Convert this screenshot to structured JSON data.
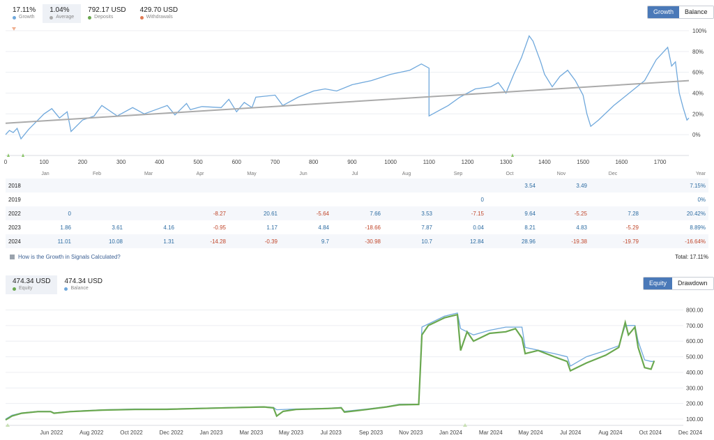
{
  "top_stats": [
    {
      "value": "17.11%",
      "label": "Growth",
      "color": "#6fa8dc",
      "active": false
    },
    {
      "value": "1.04%",
      "label": "Average",
      "color": "#aaaaaa",
      "active": true
    },
    {
      "value": "792.17 USD",
      "label": "Deposits",
      "color": "#6aa84f",
      "active": false
    },
    {
      "value": "429.70 USD",
      "label": "Withdrawals",
      "color": "#e07b53",
      "active": false
    }
  ],
  "growth_toggle": {
    "growth": "Growth",
    "balance": "Balance"
  },
  "growth_chart": {
    "type": "line",
    "x_ticks": [
      "0",
      "100",
      "200",
      "300",
      "400",
      "500",
      "600",
      "700",
      "800",
      "900",
      "1000",
      "1100",
      "1200",
      "1300",
      "1400",
      "1500",
      "1600",
      "1700"
    ],
    "y_ticks": [
      "100%",
      "80%",
      "60%",
      "40%",
      "20%",
      "0%"
    ],
    "series": [
      {
        "role": "growth",
        "color": "#6fa8dc",
        "points": [
          [
            0,
            0
          ],
          [
            10,
            4
          ],
          [
            20,
            2
          ],
          [
            30,
            6
          ],
          [
            40,
            -4
          ],
          [
            60,
            5
          ],
          [
            100,
            20
          ],
          [
            120,
            25
          ],
          [
            140,
            16
          ],
          [
            160,
            22
          ],
          [
            170,
            3
          ],
          [
            200,
            14
          ],
          [
            230,
            18
          ],
          [
            250,
            28
          ],
          [
            290,
            18
          ],
          [
            330,
            26
          ],
          [
            360,
            20
          ],
          [
            390,
            24
          ],
          [
            420,
            28
          ],
          [
            440,
            19
          ],
          [
            470,
            30
          ],
          [
            480,
            24
          ],
          [
            510,
            27
          ],
          [
            560,
            26
          ],
          [
            580,
            34
          ],
          [
            600,
            22
          ],
          [
            620,
            31
          ],
          [
            640,
            26
          ],
          [
            650,
            36
          ],
          [
            700,
            38
          ],
          [
            720,
            28
          ],
          [
            760,
            36
          ],
          [
            800,
            42
          ],
          [
            830,
            44
          ],
          [
            860,
            42
          ],
          [
            900,
            48
          ],
          [
            950,
            52
          ],
          [
            1000,
            58
          ],
          [
            1050,
            62
          ],
          [
            1080,
            68
          ],
          [
            1100,
            64
          ],
          [
            1100,
            18
          ],
          [
            1150,
            28
          ],
          [
            1180,
            36
          ],
          [
            1200,
            40
          ],
          [
            1220,
            44
          ],
          [
            1260,
            46
          ],
          [
            1280,
            50
          ],
          [
            1300,
            40
          ],
          [
            1320,
            58
          ],
          [
            1340,
            74
          ],
          [
            1360,
            95
          ],
          [
            1370,
            90
          ],
          [
            1390,
            70
          ],
          [
            1400,
            58
          ],
          [
            1420,
            46
          ],
          [
            1440,
            56
          ],
          [
            1460,
            62
          ],
          [
            1480,
            52
          ],
          [
            1500,
            38
          ],
          [
            1510,
            20
          ],
          [
            1520,
            8
          ],
          [
            1540,
            14
          ],
          [
            1580,
            28
          ],
          [
            1620,
            40
          ],
          [
            1660,
            52
          ],
          [
            1690,
            72
          ],
          [
            1720,
            84
          ],
          [
            1730,
            66
          ],
          [
            1740,
            70
          ],
          [
            1750,
            40
          ],
          [
            1760,
            26
          ],
          [
            1770,
            14
          ],
          [
            1775,
            16
          ]
        ]
      },
      {
        "role": "average",
        "color": "#aaaaaa",
        "points": [
          [
            0,
            11
          ],
          [
            1775,
            52
          ]
        ]
      }
    ]
  },
  "monthly_table": {
    "months": [
      "Jan",
      "Feb",
      "Mar",
      "Apr",
      "May",
      "Jun",
      "Jul",
      "Aug",
      "Sep",
      "Oct",
      "Nov",
      "Dec"
    ],
    "year_label": "Year",
    "rows": [
      {
        "year": "2018",
        "values": [
          "",
          "",
          "",
          "",
          "",
          "",
          "",
          "",
          "",
          "3.54",
          "3.49",
          ""
        ],
        "total": "7.15%"
      },
      {
        "year": "2019",
        "values": [
          "",
          "",
          "",
          "",
          "",
          "",
          "",
          "",
          "0",
          "",
          "",
          ""
        ],
        "total": "0%"
      },
      {
        "year": "2022",
        "values": [
          "0",
          "",
          "",
          "-8.27",
          "20.61",
          "-5.64",
          "7.66",
          "3.53",
          "-7.15",
          "9.64",
          "-5.25",
          "7.28"
        ],
        "total": "20.42%"
      },
      {
        "year": "2023",
        "values": [
          "1.86",
          "3.61",
          "4.16",
          "-0.95",
          "1.17",
          "4.84",
          "-18.66",
          "7.87",
          "0.04",
          "8.21",
          "4.83",
          "-5.29"
        ],
        "total": "8.89%"
      },
      {
        "year": "2024",
        "values": [
          "11.01",
          "10.08",
          "1.31",
          "-14.28",
          "-0.39",
          "9.7",
          "-30.98",
          "10.7",
          "12.84",
          "28.96",
          "-19.38",
          "-19.79"
        ],
        "total": "-16.64%"
      }
    ]
  },
  "calc_link": "How is the Growth in Signals Calculated?",
  "total_label": "Total: 17.11%",
  "equity_stats": [
    {
      "value": "474.34 USD",
      "label": "Equity",
      "color": "#6aa84f",
      "active": true
    },
    {
      "value": "474.34 USD",
      "label": "Balance",
      "color": "#6fa8dc",
      "active": false
    }
  ],
  "equity_toggle": {
    "equity": "Equity",
    "drawdown": "Drawdown"
  },
  "equity_chart": {
    "type": "line",
    "y_ticks": [
      "800.00",
      "700.00",
      "600.00",
      "500.00",
      "400.00",
      "300.00",
      "200.00",
      "100.00"
    ],
    "x_ticks": [
      "Jun 2022",
      "Aug 2022",
      "Oct 2022",
      "Dec 2022",
      "Jan 2023",
      "Mar 2023",
      "May 2023",
      "Jul 2023",
      "Sep 2023",
      "Nov 2023",
      "Jan 2024",
      "Mar 2024",
      "May 2024",
      "Jul 2024",
      "Aug 2024",
      "Oct 2024",
      "Dec 2024"
    ],
    "series": [
      {
        "role": "balance",
        "color": "#6fa8dc",
        "points": [
          [
            0,
            100
          ],
          [
            2,
            125
          ],
          [
            5,
            140
          ],
          [
            10,
            150
          ],
          [
            14,
            150
          ],
          [
            15,
            140
          ],
          [
            20,
            150
          ],
          [
            30,
            160
          ],
          [
            40,
            165
          ],
          [
            50,
            165
          ],
          [
            60,
            170
          ],
          [
            70,
            175
          ],
          [
            80,
            180
          ],
          [
            83,
            175
          ],
          [
            84,
            160
          ],
          [
            90,
            165
          ],
          [
            100,
            170
          ],
          [
            104,
            175
          ],
          [
            105,
            150
          ],
          [
            112,
            165
          ],
          [
            118,
            180
          ],
          [
            122,
            195
          ],
          [
            128,
            195
          ],
          [
            129,
            690
          ],
          [
            133,
            730
          ],
          [
            136,
            760
          ],
          [
            140,
            780
          ],
          [
            141,
            680
          ],
          [
            145,
            640
          ],
          [
            150,
            670
          ],
          [
            155,
            690
          ],
          [
            160,
            690
          ],
          [
            161,
            560
          ],
          [
            170,
            520
          ],
          [
            174,
            500
          ],
          [
            175,
            440
          ],
          [
            180,
            500
          ],
          [
            186,
            540
          ],
          [
            190,
            570
          ],
          [
            192,
            700
          ],
          [
            195,
            700
          ],
          [
            196,
            600
          ],
          [
            198,
            480
          ],
          [
            200,
            470
          ],
          [
            201,
            470
          ]
        ]
      },
      {
        "role": "equity",
        "color": "#6aa84f",
        "points": [
          [
            0,
            95
          ],
          [
            2,
            120
          ],
          [
            5,
            138
          ],
          [
            10,
            148
          ],
          [
            14,
            148
          ],
          [
            15,
            138
          ],
          [
            20,
            148
          ],
          [
            30,
            158
          ],
          [
            40,
            162
          ],
          [
            50,
            163
          ],
          [
            60,
            168
          ],
          [
            70,
            173
          ],
          [
            80,
            178
          ],
          [
            83,
            172
          ],
          [
            84,
            120
          ],
          [
            86,
            150
          ],
          [
            90,
            162
          ],
          [
            100,
            168
          ],
          [
            104,
            172
          ],
          [
            105,
            145
          ],
          [
            112,
            162
          ],
          [
            118,
            178
          ],
          [
            122,
            192
          ],
          [
            128,
            194
          ],
          [
            129,
            640
          ],
          [
            131,
            700
          ],
          [
            133,
            720
          ],
          [
            136,
            750
          ],
          [
            140,
            770
          ],
          [
            141,
            540
          ],
          [
            143,
            660
          ],
          [
            145,
            600
          ],
          [
            150,
            650
          ],
          [
            155,
            660
          ],
          [
            158,
            680
          ],
          [
            160,
            620
          ],
          [
            161,
            520
          ],
          [
            165,
            540
          ],
          [
            170,
            500
          ],
          [
            174,
            470
          ],
          [
            175,
            410
          ],
          [
            180,
            460
          ],
          [
            186,
            510
          ],
          [
            190,
            560
          ],
          [
            192,
            720
          ],
          [
            193,
            640
          ],
          [
            195,
            690
          ],
          [
            196,
            560
          ],
          [
            198,
            430
          ],
          [
            200,
            420
          ],
          [
            201,
            474
          ]
        ]
      }
    ]
  }
}
